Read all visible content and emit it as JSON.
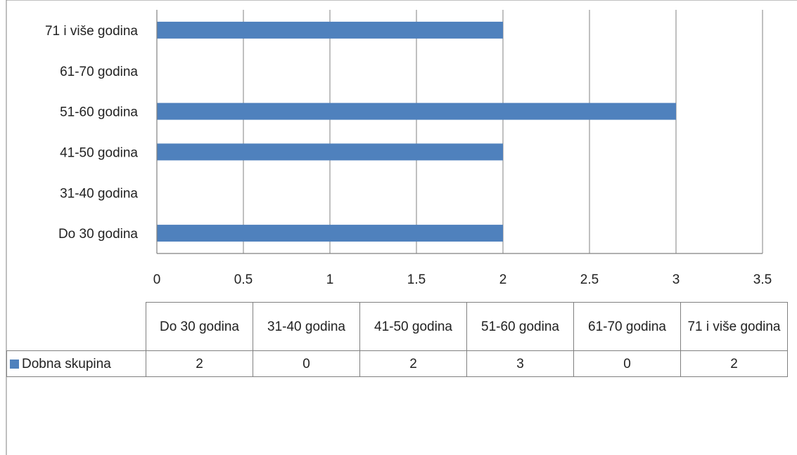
{
  "chart_data": {
    "type": "bar",
    "orientation": "horizontal",
    "categories": [
      "Do 30 godina",
      "31-40 godina",
      "41-50 godina",
      "51-60 godina",
      "61-70 godina",
      "71 i više godina"
    ],
    "series": [
      {
        "name": "Dobna skupina",
        "values": [
          2,
          0,
          2,
          3,
          0,
          2
        ],
        "color": "#4f81bd"
      }
    ],
    "x_ticks": [
      "0",
      "0.5",
      "1",
      "1.5",
      "2",
      "2.5",
      "3",
      "3.5"
    ],
    "xlim": [
      0,
      3.5
    ],
    "grid": true,
    "legend": "data-table"
  },
  "table": {
    "headers": [
      "Do 30 godina",
      "31-40 godina",
      "41-50 godina",
      "51-60 godina",
      "61-70 godina",
      "71 i više godina"
    ],
    "row_label": "Dobna skupina",
    "values": [
      "2",
      "0",
      "2",
      "3",
      "0",
      "2"
    ]
  }
}
